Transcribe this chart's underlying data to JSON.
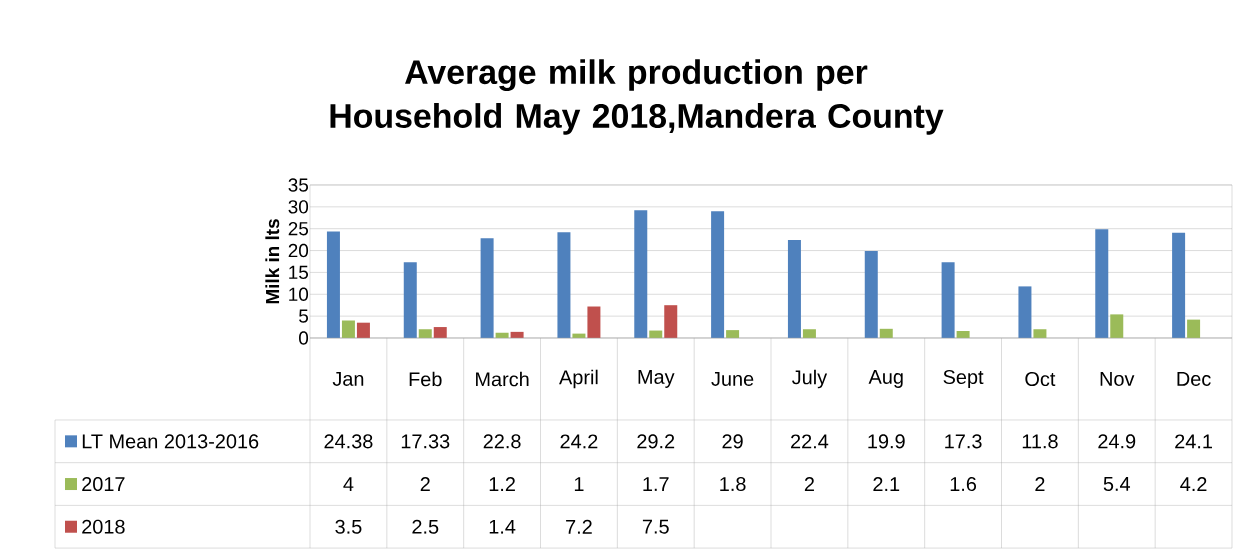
{
  "chart_data": {
    "type": "bar",
    "title": "Average milk production per Household May 2018,Mandera County",
    "ylabel": "Milk in lts",
    "categories": [
      "Jan",
      "Feb",
      "March",
      "April",
      "May",
      "June",
      "July",
      "Aug",
      "Sept",
      "Oct",
      "Nov",
      "Dec"
    ],
    "series": [
      {
        "name": "LT Mean 2013-2016",
        "color": "#4f81bd",
        "values": [
          24.38,
          17.33,
          22.8,
          24.2,
          29.2,
          29,
          22.4,
          19.9,
          17.3,
          11.8,
          24.9,
          24.1
        ],
        "value_labels": [
          "24.38",
          "17.33",
          "22.8",
          "24.2",
          "29.2",
          "29",
          "22.4",
          "19.9",
          "17.3",
          "11.8",
          "24.9",
          "24.1"
        ]
      },
      {
        "name": "2017",
        "color": "#9bbb59",
        "values": [
          4,
          2,
          1.2,
          1,
          1.7,
          1.8,
          2,
          2.1,
          1.6,
          2,
          5.4,
          4.2
        ],
        "value_labels": [
          "4",
          "2",
          "1.2",
          "1",
          "1.7",
          "1.8",
          "2",
          "2.1",
          "1.6",
          "2",
          "5.4",
          "4.2"
        ]
      },
      {
        "name": "2018",
        "color": "#c0504d",
        "values": [
          3.5,
          2.5,
          1.4,
          7.2,
          7.5,
          null,
          null,
          null,
          null,
          null,
          null,
          null
        ],
        "value_labels": [
          "3.5",
          "2.5",
          "1.4",
          "7.2",
          "7.5",
          null,
          null,
          null,
          null,
          null,
          null,
          null
        ]
      }
    ],
    "ylim": [
      0,
      35
    ],
    "yticks": [
      0,
      5,
      10,
      15,
      20,
      25,
      30,
      35
    ],
    "grid": "y",
    "legend": "bottom"
  }
}
